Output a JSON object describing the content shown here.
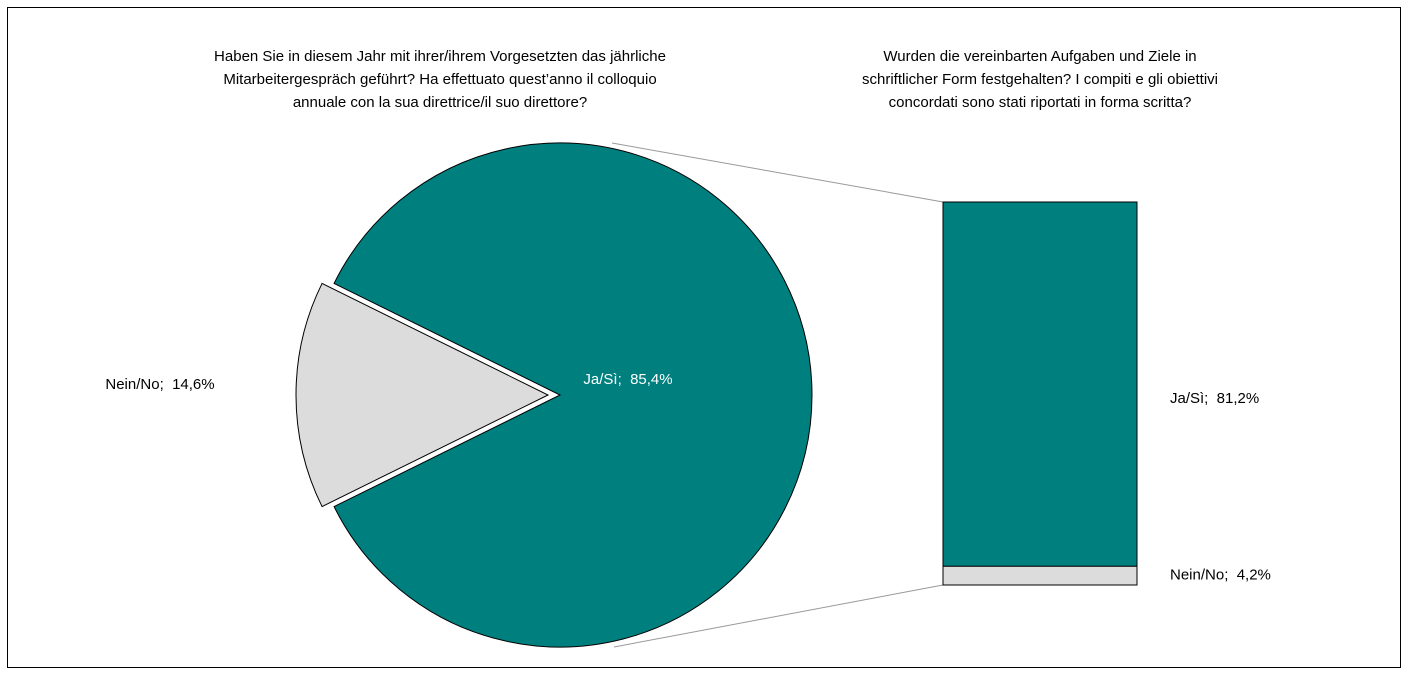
{
  "chart_data": [
    {
      "type": "pie",
      "title": [
        "Haben Sie in diesem Jahr mit ihrer/ihrem Vorgesetzten das jährliche",
        "Mitarbeitergespräch geführt? Ha effettuato quest’anno il colloquio",
        "annuale con la sua direttrice/il suo direttore?"
      ],
      "values": [
        85.4,
        14.6
      ],
      "value_labels": [
        "Ja/Sì;  85,4%",
        "Nein/No;  14,6%"
      ],
      "colors": [
        "#007f7f",
        "#dcdcdc"
      ]
    },
    {
      "type": "bar",
      "title": [
        "Wurden die vereinbarten Aufgaben und Ziele in",
        "schriftlicher Form festgehalten? I compiti e gli obiettivi",
        "concordati sono stati riportati in forma scritta?"
      ],
      "values": [
        81.2,
        4.2
      ],
      "value_labels": [
        "Ja/Sì;  81,2%",
        "Nein/No;  4,2%"
      ],
      "colors": [
        "#007f7f",
        "#dcdcdc"
      ]
    }
  ]
}
